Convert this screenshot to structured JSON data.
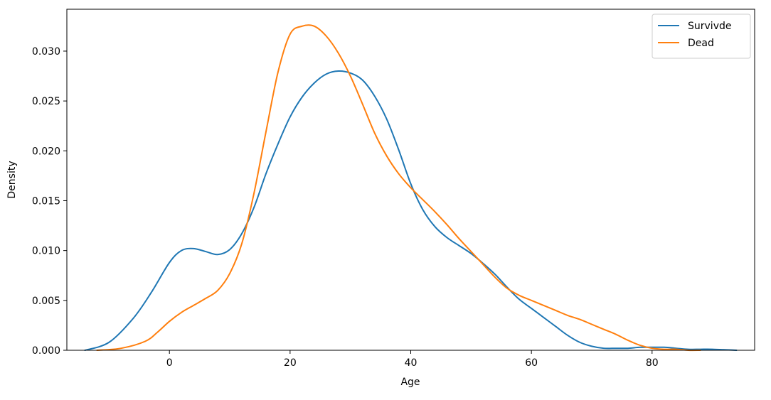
{
  "chart_data": {
    "type": "line",
    "title": "",
    "xlabel": "Age",
    "ylabel": "Density",
    "xlim": [
      -17,
      97
    ],
    "ylim": [
      0,
      0.0342
    ],
    "xticks": [
      0,
      20,
      40,
      60,
      80
    ],
    "xtick_labels": [
      "0",
      "20",
      "40",
      "60",
      "80"
    ],
    "yticks": [
      0,
      0.005,
      0.01,
      0.015,
      0.02,
      0.025,
      0.03
    ],
    "ytick_labels": [
      "0.000",
      "0.005",
      "0.010",
      "0.015",
      "0.020",
      "0.025",
      "0.030"
    ],
    "grid": false,
    "legend_position": "top-right",
    "series": [
      {
        "name": "Survivde",
        "color": "#1f77b4",
        "x": [
          -14,
          -10,
          -6,
          -3,
          0,
          2,
          4,
          6,
          8,
          10,
          12,
          14,
          16,
          18,
          20,
          22,
          24,
          26,
          28,
          30,
          32,
          34,
          36,
          38,
          40,
          42,
          44,
          46,
          48,
          50,
          52,
          54,
          56,
          58,
          60,
          62,
          64,
          66,
          68,
          70,
          72,
          74,
          76,
          78,
          80,
          82,
          84,
          86,
          88,
          90,
          94
        ],
        "y": [
          0.0,
          0.0008,
          0.0032,
          0.0058,
          0.0088,
          0.01,
          0.0102,
          0.0099,
          0.0096,
          0.0101,
          0.0117,
          0.0143,
          0.0177,
          0.0207,
          0.0234,
          0.0254,
          0.0268,
          0.0277,
          0.028,
          0.0278,
          0.0271,
          0.0255,
          0.0232,
          0.0201,
          0.0167,
          0.0141,
          0.0124,
          0.0113,
          0.0105,
          0.0097,
          0.0087,
          0.0076,
          0.0063,
          0.0051,
          0.0042,
          0.0033,
          0.0024,
          0.0015,
          0.0008,
          0.0004,
          0.0002,
          0.0002,
          0.0002,
          0.0003,
          0.0003,
          0.0003,
          0.0002,
          0.0001,
          0.0001,
          0.0001,
          0.0
        ]
      },
      {
        "name": "Dead",
        "color": "#ff7f0e",
        "x": [
          -12,
          -8,
          -4,
          -2,
          0,
          2,
          4,
          6,
          8,
          10,
          12,
          14,
          16,
          18,
          20,
          22,
          24,
          26,
          28,
          30,
          32,
          34,
          36,
          38,
          40,
          42,
          44,
          46,
          48,
          50,
          52,
          54,
          56,
          58,
          60,
          62,
          64,
          66,
          68,
          70,
          72,
          74,
          76,
          78,
          80,
          82,
          84,
          86,
          88
        ],
        "y": [
          0.0,
          0.0002,
          0.0009,
          0.0018,
          0.0029,
          0.0038,
          0.0045,
          0.0052,
          0.006,
          0.0077,
          0.0107,
          0.0157,
          0.0219,
          0.0279,
          0.0317,
          0.0325,
          0.0325,
          0.0315,
          0.0298,
          0.0275,
          0.0247,
          0.0218,
          0.0195,
          0.0177,
          0.0163,
          0.0151,
          0.0139,
          0.0126,
          0.0112,
          0.0099,
          0.0086,
          0.0073,
          0.0062,
          0.0055,
          0.005,
          0.0045,
          0.004,
          0.0035,
          0.0031,
          0.0026,
          0.0021,
          0.0016,
          0.001,
          0.0005,
          0.0002,
          0.0001,
          0.0001,
          0.0,
          0.0
        ]
      }
    ]
  }
}
